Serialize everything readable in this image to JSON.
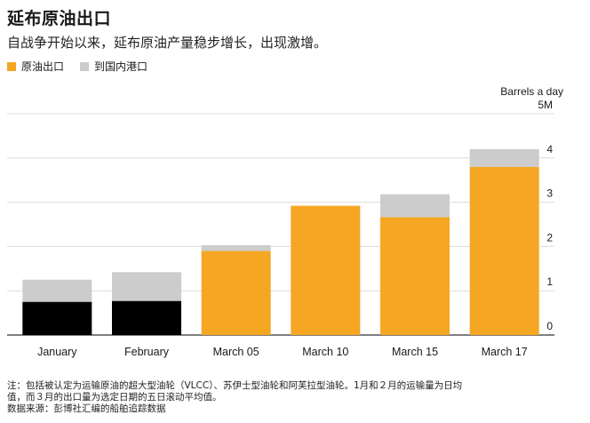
{
  "header": {
    "title": "延布原油出口",
    "subtitle": "自战争开始以来，延布原油产量稳步增长，出现激增。"
  },
  "legend": [
    {
      "label": "原油出口",
      "color": "#f5a623"
    },
    {
      "label": "到国内港口",
      "color": "#cccccc"
    }
  ],
  "chart_data": {
    "type": "bar",
    "stacked": true,
    "categories": [
      "January",
      "February",
      "March 05",
      "March 10",
      "March 15",
      "March 17"
    ],
    "series": [
      {
        "name": "原油出口",
        "values": [
          0.75,
          0.77,
          1.9,
          2.92,
          2.66,
          3.8
        ]
      },
      {
        "name": "到国内港口",
        "values": [
          0.5,
          0.65,
          0.13,
          0,
          0.52,
          0.4
        ]
      }
    ],
    "bar_colors_series0": [
      "#000000",
      "#000000",
      "#f5a623",
      "#f5a623",
      "#f5a623",
      "#f5a623"
    ],
    "ylabel": "Barrels a day",
    "ylim": [
      0,
      5
    ],
    "yticks": [
      "0",
      "1",
      "2",
      "3",
      "4",
      "5M"
    ],
    "grid": true,
    "axis_position": "right"
  },
  "footnote": {
    "line1": "注：包括被认定为运输原油的超大型油轮（VLCC）、苏伊士型油轮和阿芙拉型油轮。1月和２月的运输量为日均",
    "line2": "值，而３月的出口量为选定日期的五日滚动平均值。",
    "line3": "数据来源：彭博社汇编的船舶追踪数据"
  }
}
